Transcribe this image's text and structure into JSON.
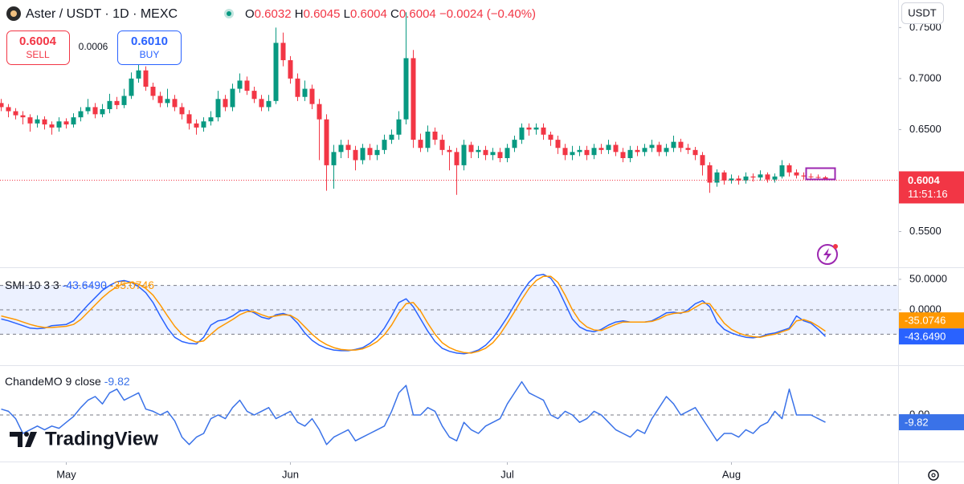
{
  "header": {
    "title": "Aster / USDT · 1D · MEXC",
    "ohlc_labels": [
      "O",
      "H",
      "L",
      "C"
    ],
    "change": "−0.0024 (−0.40%)"
  },
  "trade": {
    "sell_price": "0.6004",
    "sell_label": "SELL",
    "spread": "0.0006",
    "buy_price": "0.6010",
    "buy_label": "BUY"
  },
  "currency": "USDT",
  "logo": "TradingView",
  "chart_data": [
    {
      "type": "candlestick",
      "up_color": "#089981",
      "down_color": "#f23645",
      "ylim": [
        0.515,
        0.777
      ],
      "yticks": [
        {
          "value": 0.75,
          "label": "0.7500"
        },
        {
          "value": 0.7,
          "label": "0.7000"
        },
        {
          "value": 0.65,
          "label": "0.6500"
        },
        {
          "value": 0.55,
          "label": "0.5500"
        }
      ],
      "grid": false,
      "countdown": "11:51:16",
      "xticks": [
        {
          "value": 9,
          "label": "May"
        },
        {
          "value": 40,
          "label": "Jun"
        },
        {
          "value": 70,
          "label": "Jul"
        },
        {
          "value": 101,
          "label": "Aug"
        }
      ],
      "open": [
        0.676,
        0.672,
        0.668,
        0.664,
        0.662,
        0.656,
        0.66,
        0.655,
        0.652,
        0.658,
        0.655,
        0.662,
        0.668,
        0.672,
        0.665,
        0.67,
        0.678,
        0.674,
        0.683,
        0.7,
        0.708,
        0.692,
        0.683,
        0.676,
        0.68,
        0.672,
        0.665,
        0.656,
        0.652,
        0.658,
        0.662,
        0.68,
        0.672,
        0.69,
        0.698,
        0.688,
        0.68,
        0.672,
        0.678,
        0.735,
        0.718,
        0.7,
        0.682,
        0.69,
        0.675,
        0.66,
        0.615,
        0.628,
        0.635,
        0.63,
        0.62,
        0.632,
        0.625,
        0.63,
        0.64,
        0.645,
        0.66,
        0.72,
        0.64,
        0.632,
        0.648,
        0.64,
        0.63,
        0.628,
        0.615,
        0.635,
        0.628,
        0.63,
        0.625,
        0.628,
        0.622,
        0.632,
        0.64,
        0.652,
        0.65,
        0.652,
        0.645,
        0.64,
        0.632,
        0.625,
        0.628,
        0.63,
        0.625,
        0.632,
        0.63,
        0.635,
        0.628,
        0.622,
        0.63,
        0.628,
        0.632,
        0.635,
        0.628,
        0.632,
        0.638,
        0.632,
        0.63,
        0.625,
        0.615,
        0.598,
        0.608,
        0.6,
        0.602,
        0.6,
        0.604,
        0.603,
        0.606,
        0.601,
        0.604,
        0.615,
        0.608,
        0.605,
        0.604,
        0.6035,
        0.6032
      ],
      "high": [
        0.68,
        0.675,
        0.671,
        0.668,
        0.665,
        0.664,
        0.663,
        0.658,
        0.662,
        0.661,
        0.666,
        0.672,
        0.68,
        0.676,
        0.675,
        0.685,
        0.682,
        0.69,
        0.706,
        0.715,
        0.712,
        0.696,
        0.687,
        0.69,
        0.684,
        0.676,
        0.669,
        0.66,
        0.662,
        0.668,
        0.688,
        0.684,
        0.695,
        0.705,
        0.702,
        0.692,
        0.684,
        0.684,
        0.75,
        0.745,
        0.722,
        0.705,
        0.698,
        0.694,
        0.68,
        0.665,
        0.635,
        0.64,
        0.64,
        0.634,
        0.636,
        0.636,
        0.635,
        0.645,
        0.65,
        0.668,
        0.765,
        0.728,
        0.646,
        0.654,
        0.652,
        0.645,
        0.634,
        0.632,
        0.64,
        0.638,
        0.634,
        0.634,
        0.632,
        0.632,
        0.636,
        0.644,
        0.656,
        0.656,
        0.656,
        0.656,
        0.648,
        0.644,
        0.636,
        0.634,
        0.634,
        0.634,
        0.636,
        0.636,
        0.64,
        0.638,
        0.632,
        0.634,
        0.634,
        0.636,
        0.64,
        0.638,
        0.636,
        0.644,
        0.641,
        0.636,
        0.633,
        0.628,
        0.618,
        0.611,
        0.61,
        0.606,
        0.605,
        0.608,
        0.607,
        0.61,
        0.608,
        0.607,
        0.62,
        0.617,
        0.611,
        0.608,
        0.607,
        0.606,
        0.6045
      ],
      "low": [
        0.668,
        0.662,
        0.66,
        0.655,
        0.648,
        0.652,
        0.65,
        0.645,
        0.648,
        0.651,
        0.652,
        0.658,
        0.665,
        0.661,
        0.662,
        0.666,
        0.67,
        0.671,
        0.68,
        0.696,
        0.688,
        0.679,
        0.672,
        0.672,
        0.668,
        0.66,
        0.65,
        0.645,
        0.648,
        0.654,
        0.658,
        0.668,
        0.668,
        0.686,
        0.684,
        0.676,
        0.668,
        0.668,
        0.675,
        0.712,
        0.695,
        0.678,
        0.678,
        0.67,
        0.62,
        0.59,
        0.592,
        0.622,
        0.622,
        0.61,
        0.616,
        0.62,
        0.62,
        0.626,
        0.636,
        0.64,
        0.655,
        0.632,
        0.628,
        0.628,
        0.635,
        0.625,
        0.61,
        0.586,
        0.61,
        0.622,
        0.622,
        0.62,
        0.62,
        0.618,
        0.618,
        0.628,
        0.636,
        0.644,
        0.645,
        0.64,
        0.634,
        0.626,
        0.62,
        0.62,
        0.624,
        0.62,
        0.621,
        0.626,
        0.626,
        0.624,
        0.618,
        0.618,
        0.624,
        0.624,
        0.628,
        0.624,
        0.624,
        0.628,
        0.628,
        0.626,
        0.62,
        0.605,
        0.588,
        0.594,
        0.596,
        0.597,
        0.596,
        0.597,
        0.599,
        0.6,
        0.598,
        0.598,
        0.602,
        0.604,
        0.602,
        0.601,
        0.601,
        0.601,
        0.6004
      ],
      "close": [
        0.672,
        0.668,
        0.664,
        0.662,
        0.656,
        0.66,
        0.655,
        0.652,
        0.658,
        0.655,
        0.662,
        0.668,
        0.672,
        0.665,
        0.67,
        0.678,
        0.674,
        0.683,
        0.7,
        0.708,
        0.692,
        0.683,
        0.676,
        0.68,
        0.672,
        0.665,
        0.656,
        0.652,
        0.658,
        0.662,
        0.68,
        0.672,
        0.69,
        0.698,
        0.688,
        0.68,
        0.672,
        0.678,
        0.735,
        0.718,
        0.7,
        0.682,
        0.69,
        0.675,
        0.66,
        0.615,
        0.628,
        0.635,
        0.63,
        0.62,
        0.632,
        0.625,
        0.63,
        0.64,
        0.645,
        0.66,
        0.72,
        0.64,
        0.632,
        0.648,
        0.64,
        0.63,
        0.628,
        0.615,
        0.635,
        0.628,
        0.63,
        0.625,
        0.628,
        0.622,
        0.632,
        0.64,
        0.652,
        0.65,
        0.652,
        0.645,
        0.64,
        0.632,
        0.625,
        0.628,
        0.63,
        0.625,
        0.632,
        0.63,
        0.635,
        0.628,
        0.622,
        0.63,
        0.628,
        0.632,
        0.635,
        0.628,
        0.632,
        0.638,
        0.632,
        0.63,
        0.625,
        0.615,
        0.598,
        0.608,
        0.6,
        0.602,
        0.6,
        0.604,
        0.603,
        0.606,
        0.601,
        0.604,
        0.615,
        0.608,
        0.605,
        0.604,
        0.6035,
        0.6032,
        0.6004
      ]
    },
    {
      "type": "line",
      "title": "SMI 10 3 3",
      "ylim": [
        -90.8,
        69.7
      ],
      "yticks": [
        {
          "value": 50,
          "label": "50.0000"
        },
        {
          "value": 0,
          "label": "0.0000"
        }
      ],
      "levels": [
        40,
        0,
        -40
      ],
      "band": [
        40,
        -40
      ],
      "band_color": "rgba(41,98,255,0.09)",
      "series": [
        {
          "color": "#2962ff",
          "values": [
            -15,
            -18,
            -22,
            -26,
            -30,
            -31,
            -30,
            -26,
            -25,
            -24,
            -18,
            -5,
            8,
            20,
            32,
            40,
            46,
            48,
            45,
            38,
            28,
            12,
            -10,
            -30,
            -45,
            -52,
            -55,
            -56,
            -45,
            -25,
            -18,
            -16,
            -10,
            -2,
            0,
            -5,
            -12,
            -15,
            -8,
            -6,
            -10,
            -22,
            -38,
            -50,
            -58,
            -63,
            -66,
            -67,
            -67,
            -65,
            -62,
            -55,
            -45,
            -30,
            -10,
            12,
            18,
            5,
            -15,
            -35,
            -52,
            -63,
            -68,
            -71,
            -72,
            -70,
            -66,
            -58,
            -46,
            -30,
            -12,
            8,
            28,
            45,
            56,
            58,
            52,
            35,
            10,
            -15,
            -28,
            -34,
            -36,
            -32,
            -25,
            -20,
            -18,
            -20,
            -20,
            -20,
            -18,
            -12,
            -5,
            -4,
            -6,
            0,
            10,
            15,
            5,
            -20,
            -32,
            -38,
            -42,
            -45,
            -46,
            -44,
            -40,
            -38,
            -34,
            -30,
            -10,
            -18,
            -22,
            -32,
            -43.649
          ],
          "value_labels": [
            null,
            null,
            null,
            null,
            null,
            null,
            null,
            null,
            null,
            null,
            null,
            null,
            null,
            null,
            null,
            null,
            null,
            null,
            null,
            null,
            null,
            null,
            null,
            null,
            null,
            null,
            null,
            null,
            null,
            null,
            null,
            null,
            null,
            null,
            null,
            null,
            null,
            null,
            null,
            null,
            null,
            null,
            null,
            null,
            null,
            null,
            null,
            null,
            null,
            null,
            null,
            null,
            null,
            null,
            null,
            null,
            null,
            null,
            null,
            null,
            null,
            null,
            null,
            null,
            null,
            null,
            null,
            null,
            null,
            null,
            null,
            null,
            null,
            null,
            null,
            null,
            null,
            null,
            null,
            null,
            null,
            null,
            null,
            null,
            null,
            null,
            null,
            null,
            null,
            null,
            null,
            null,
            null,
            null,
            null,
            null,
            null,
            null,
            null,
            null,
            null,
            null,
            null,
            null,
            null,
            null,
            null,
            null,
            null,
            null,
            null,
            null,
            null,
            null,
            "-43.6490"
          ]
        },
        {
          "color": "#ff9800",
          "values": [
            -10,
            -13,
            -16,
            -20,
            -24,
            -27,
            -29,
            -29,
            -28,
            -27,
            -24,
            -16,
            -4,
            8,
            20,
            30,
            38,
            43,
            45,
            42,
            35,
            24,
            8,
            -10,
            -27,
            -40,
            -48,
            -53,
            -51,
            -40,
            -30,
            -23,
            -16,
            -8,
            -3,
            -3,
            -8,
            -12,
            -10,
            -8,
            -9,
            -16,
            -28,
            -40,
            -50,
            -57,
            -62,
            -65,
            -66,
            -66,
            -64,
            -59,
            -52,
            -41,
            -25,
            -5,
            10,
            12,
            -2,
            -22,
            -40,
            -54,
            -62,
            -67,
            -70,
            -71,
            -68,
            -63,
            -54,
            -40,
            -22,
            -3,
            17,
            35,
            48,
            55,
            55,
            45,
            24,
            0,
            -18,
            -28,
            -33,
            -34,
            -29,
            -24,
            -20,
            -20,
            -20,
            -20,
            -19,
            -15,
            -9,
            -6,
            -5,
            -3,
            4,
            11,
            10,
            -6,
            -22,
            -32,
            -38,
            -42,
            -44,
            -45,
            -42,
            -40,
            -36,
            -32,
            -18,
            -16,
            -20,
            -27,
            -35.0746
          ]
        }
      ]
    },
    {
      "type": "line",
      "title": "ChandeMO 9 close",
      "ylim": [
        -63,
        67.4
      ],
      "yticks": [
        {
          "value": 0,
          "label": "0.00"
        }
      ],
      "levels": [
        0
      ],
      "series": [
        {
          "color": "#3a72e8",
          "values": [
            8,
            5,
            -5,
            -25,
            -20,
            -15,
            -20,
            -15,
            -18,
            -10,
            -2,
            10,
            20,
            25,
            15,
            30,
            35,
            20,
            25,
            30,
            8,
            5,
            0,
            5,
            -8,
            -30,
            -40,
            -30,
            -25,
            -5,
            0,
            -5,
            10,
            20,
            5,
            0,
            5,
            10,
            -5,
            0,
            5,
            -10,
            -15,
            -5,
            -20,
            -40,
            -30,
            -25,
            -20,
            -35,
            -30,
            -25,
            -20,
            -15,
            5,
            30,
            40,
            0,
            0,
            10,
            5,
            -15,
            -30,
            -35,
            -10,
            -20,
            -25,
            -15,
            -10,
            -5,
            15,
            30,
            45,
            30,
            25,
            20,
            0,
            -5,
            5,
            0,
            -10,
            -5,
            5,
            0,
            -10,
            -20,
            -25,
            -30,
            -20,
            -25,
            -5,
            10,
            25,
            15,
            0,
            5,
            10,
            -5,
            -20,
            -35,
            -25,
            -25,
            -30,
            -20,
            -25,
            -15,
            -10,
            5,
            -5,
            35,
            0,
            0,
            0,
            -5,
            -9.82
          ]
        }
      ]
    }
  ]
}
